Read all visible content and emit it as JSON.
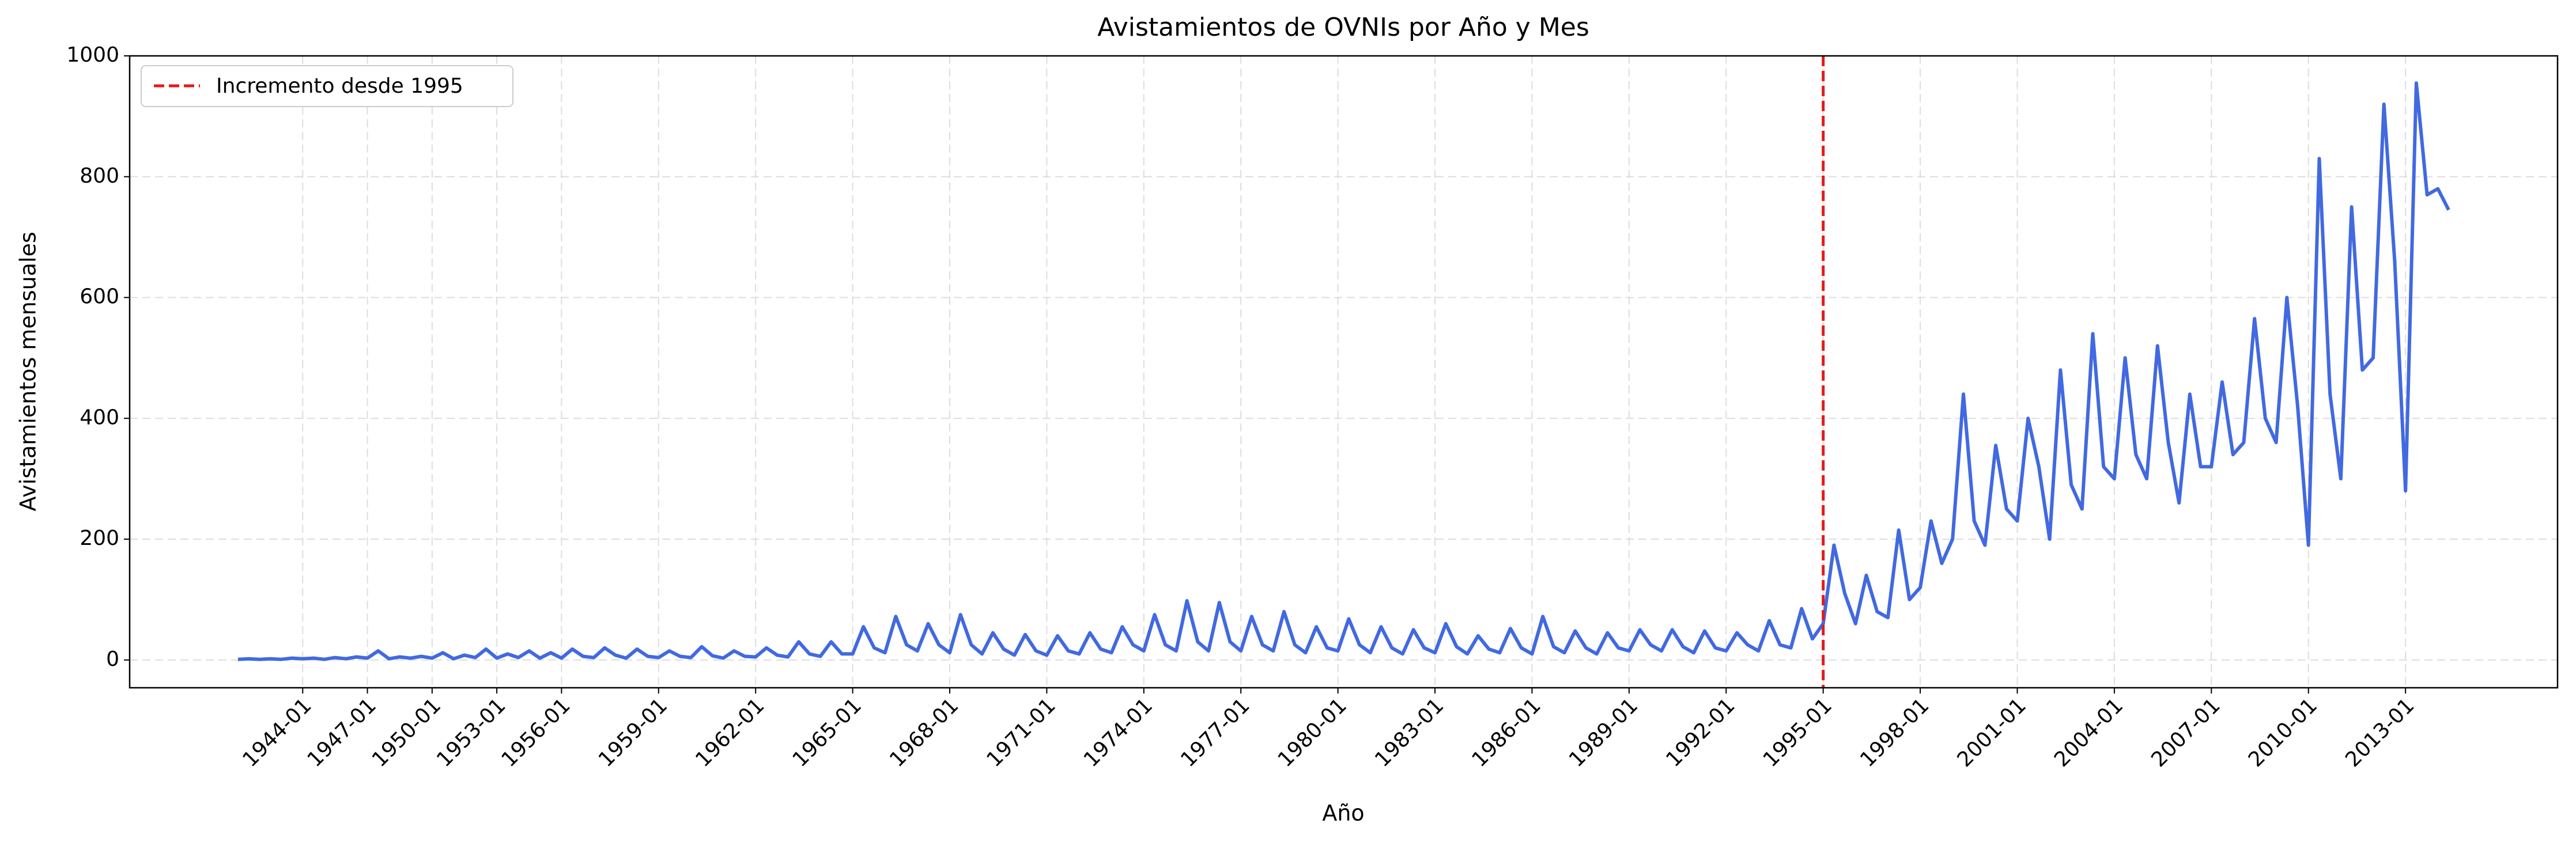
{
  "chart_data": {
    "type": "line",
    "title": "Avistamientos de OVNIs por Año y Mes",
    "xlabel": "Año",
    "ylabel": "Avistamientos mensuales",
    "x": [
      "1941-01",
      "1941-07",
      "1942-01",
      "1942-07",
      "1943-01",
      "1943-07",
      "1944-01",
      "1944-07",
      "1945-01",
      "1945-07",
      "1946-01",
      "1946-07",
      "1947-01",
      "1947-07",
      "1948-01",
      "1948-07",
      "1949-01",
      "1949-07",
      "1950-01",
      "1950-07",
      "1951-01",
      "1951-07",
      "1952-01",
      "1952-07",
      "1953-01",
      "1953-07",
      "1954-01",
      "1954-07",
      "1955-01",
      "1955-07",
      "1956-01",
      "1956-07",
      "1956-10",
      "1957-01",
      "1957-07",
      "1957-10",
      "1958-01",
      "1958-07",
      "1958-10",
      "1959-01",
      "1959-07",
      "1959-10",
      "1960-01",
      "1960-07",
      "1960-10",
      "1961-01",
      "1961-07",
      "1961-10",
      "1962-01",
      "1962-07",
      "1962-10",
      "1963-01",
      "1963-07",
      "1963-10",
      "1964-01",
      "1964-07",
      "1964-10",
      "1965-01",
      "1965-07",
      "1965-10",
      "1966-01",
      "1966-07",
      "1966-10",
      "1967-01",
      "1967-07",
      "1967-10",
      "1968-01",
      "1968-07",
      "1968-10",
      "1969-01",
      "1969-07",
      "1969-10",
      "1970-01",
      "1970-07",
      "1970-10",
      "1971-01",
      "1971-07",
      "1971-10",
      "1972-01",
      "1972-07",
      "1972-10",
      "1973-01",
      "1973-07",
      "1973-10",
      "1974-01",
      "1974-07",
      "1974-10",
      "1975-01",
      "1975-07",
      "1975-10",
      "1976-01",
      "1976-07",
      "1976-10",
      "1977-01",
      "1977-07",
      "1977-10",
      "1978-01",
      "1978-07",
      "1978-10",
      "1979-01",
      "1979-07",
      "1979-10",
      "1980-01",
      "1980-07",
      "1980-10",
      "1981-01",
      "1981-07",
      "1981-10",
      "1982-01",
      "1982-07",
      "1982-10",
      "1983-01",
      "1983-07",
      "1983-10",
      "1984-01",
      "1984-07",
      "1984-10",
      "1985-01",
      "1985-07",
      "1985-10",
      "1986-01",
      "1986-07",
      "1986-10",
      "1987-01",
      "1987-07",
      "1987-10",
      "1988-01",
      "1988-07",
      "1988-10",
      "1989-01",
      "1989-07",
      "1989-10",
      "1990-01",
      "1990-07",
      "1990-10",
      "1991-01",
      "1991-07",
      "1991-10",
      "1992-01",
      "1992-07",
      "1992-10",
      "1993-01",
      "1993-07",
      "1993-10",
      "1994-01",
      "1994-07",
      "1994-10",
      "1995-01",
      "1995-07",
      "1995-10",
      "1996-01",
      "1996-07",
      "1996-10",
      "1997-01",
      "1997-07",
      "1997-10",
      "1998-01",
      "1998-07",
      "1998-10",
      "1999-01",
      "1999-07",
      "1999-10",
      "2000-01",
      "2000-07",
      "2000-10",
      "2001-01",
      "2001-07",
      "2001-10",
      "2002-01",
      "2002-07",
      "2002-10",
      "2003-01",
      "2003-07",
      "2003-10",
      "2004-01",
      "2004-07",
      "2004-10",
      "2005-01",
      "2005-07",
      "2005-10",
      "2006-01",
      "2006-07",
      "2006-10",
      "2007-01",
      "2007-07",
      "2007-10",
      "2008-01",
      "2008-07",
      "2008-10",
      "2009-01",
      "2009-07",
      "2009-10",
      "2010-01",
      "2010-07",
      "2010-10",
      "2011-01",
      "2011-07",
      "2011-10",
      "2012-01",
      "2012-07",
      "2012-10",
      "2013-01",
      "2013-07",
      "2013-10",
      "2014-01",
      "2014-04"
    ],
    "values": [
      1,
      2,
      1,
      2,
      1,
      3,
      2,
      3,
      1,
      4,
      2,
      5,
      3,
      15,
      2,
      5,
      3,
      6,
      3,
      12,
      2,
      8,
      4,
      18,
      3,
      10,
      4,
      15,
      3,
      12,
      3,
      18,
      6,
      4,
      20,
      8,
      3,
      18,
      6,
      4,
      15,
      6,
      4,
      22,
      7,
      3,
      15,
      6,
      5,
      20,
      8,
      5,
      30,
      10,
      6,
      30,
      10,
      10,
      55,
      20,
      12,
      72,
      25,
      15,
      60,
      25,
      12,
      75,
      25,
      10,
      45,
      18,
      8,
      42,
      15,
      8,
      40,
      15,
      10,
      45,
      18,
      12,
      55,
      25,
      15,
      75,
      25,
      15,
      98,
      30,
      15,
      95,
      30,
      15,
      72,
      25,
      15,
      80,
      25,
      12,
      55,
      20,
      15,
      68,
      25,
      12,
      55,
      20,
      10,
      50,
      20,
      12,
      60,
      22,
      10,
      40,
      18,
      12,
      52,
      20,
      10,
      72,
      22,
      12,
      48,
      20,
      10,
      45,
      20,
      15,
      50,
      25,
      15,
      50,
      22,
      12,
      48,
      20,
      15,
      45,
      25,
      15,
      65,
      25,
      20,
      85,
      35,
      60,
      190,
      110,
      60,
      140,
      80,
      70,
      215,
      100,
      120,
      230,
      160,
      200,
      440,
      230,
      190,
      355,
      250,
      230,
      400,
      320,
      200,
      480,
      290,
      250,
      540,
      320,
      300,
      500,
      340,
      300,
      520,
      360,
      260,
      440,
      320,
      320,
      460,
      340,
      360,
      565,
      400,
      360,
      600,
      420,
      190,
      830,
      440,
      300,
      750,
      480,
      500,
      920,
      660,
      280,
      955,
      770,
      780,
      745
    ],
    "color": "#4169e1",
    "vline": {
      "x": "1995-01",
      "color": "#e41a1c",
      "label": "Incremento desde 1995"
    },
    "ylim": [
      -46,
      1000
    ],
    "yticks": [
      0,
      200,
      400,
      600,
      800,
      1000
    ],
    "xticks": [
      "1944-01",
      "1947-01",
      "1950-01",
      "1953-01",
      "1956-01",
      "1959-01",
      "1962-01",
      "1965-01",
      "1968-01",
      "1971-01",
      "1974-01",
      "1977-01",
      "1980-01",
      "1983-01",
      "1986-01",
      "1989-01",
      "1992-01",
      "1995-01",
      "1998-01",
      "2001-01",
      "2004-01",
      "2007-01",
      "2010-01",
      "2013-01"
    ],
    "grid": true,
    "legend": "upper left"
  }
}
